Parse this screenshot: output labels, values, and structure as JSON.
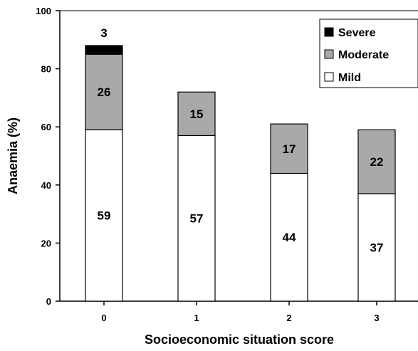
{
  "chart_data": {
    "type": "bar",
    "stacked": true,
    "xlabel": "Socioeconomic situation score",
    "ylabel": "Anaemia (%)",
    "categories": [
      "0",
      "1",
      "2",
      "3"
    ],
    "series": [
      {
        "name": "Mild",
        "values": [
          59,
          57,
          44,
          37
        ],
        "color": "#ffffff"
      },
      {
        "name": "Moderate",
        "values": [
          26,
          15,
          17,
          22
        ],
        "color": "#a9a9a9"
      },
      {
        "name": "Severe",
        "values": [
          3,
          null,
          null,
          null
        ],
        "color": "#000000"
      }
    ],
    "data_labels": [
      {
        "series": "Mild",
        "values": [
          "59",
          "57",
          "44",
          "37"
        ]
      },
      {
        "series": "Moderate",
        "values": [
          "26",
          "15",
          "17",
          "22"
        ]
      },
      {
        "series": "Severe",
        "values": [
          "3",
          "",
          "",
          ""
        ]
      }
    ],
    "ylim": [
      0,
      100
    ],
    "yticks": [
      0,
      20,
      40,
      60,
      80,
      100
    ],
    "grid": false,
    "legend": {
      "position": "top-right",
      "entries": [
        "Severe",
        "Moderate",
        "Mild"
      ]
    }
  }
}
